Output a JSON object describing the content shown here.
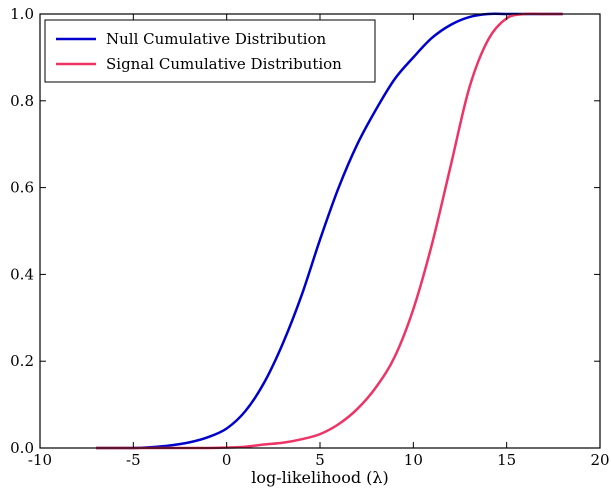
{
  "chart_data": {
    "type": "line",
    "xlabel": "log-likelihood (λ)",
    "ylabel": "",
    "xlim": [
      -10,
      20
    ],
    "ylim": [
      0.0,
      1.0
    ],
    "xticks": [
      "-10",
      "-5",
      "0",
      "5",
      "10",
      "15",
      "20"
    ],
    "yticks": [
      "0.0",
      "0.2",
      "0.4",
      "0.6",
      "0.8",
      "1.0"
    ],
    "grid": false,
    "legend_position": "top-left",
    "series": [
      {
        "name": "Null Cumulative Distribution",
        "color": "#0000cc",
        "x": [
          -7,
          -5,
          -4,
          -3,
          -2,
          -1,
          0,
          1,
          2,
          3,
          4,
          5,
          6,
          7,
          8,
          9,
          10,
          11,
          12,
          13,
          14,
          15,
          16,
          17,
          18
        ],
        "y": [
          0.0,
          0.0,
          0.002,
          0.006,
          0.013,
          0.025,
          0.045,
          0.085,
          0.15,
          0.24,
          0.35,
          0.48,
          0.6,
          0.7,
          0.78,
          0.85,
          0.9,
          0.945,
          0.975,
          0.993,
          1.0,
          1.0,
          1.0,
          1.0,
          1.0
        ]
      },
      {
        "name": "Signal Cumulative Distribution",
        "color": "#ee3366",
        "x": [
          -7,
          -3,
          -1,
          0,
          1,
          2,
          3,
          4,
          5,
          6,
          7,
          8,
          9,
          10,
          11,
          12,
          13,
          14,
          15,
          16,
          17,
          18
        ],
        "y": [
          0.0,
          0.0,
          0.0,
          0.001,
          0.003,
          0.008,
          0.012,
          0.02,
          0.032,
          0.055,
          0.09,
          0.14,
          0.21,
          0.32,
          0.47,
          0.65,
          0.83,
          0.94,
          0.99,
          1.0,
          1.0,
          1.0
        ]
      }
    ]
  }
}
